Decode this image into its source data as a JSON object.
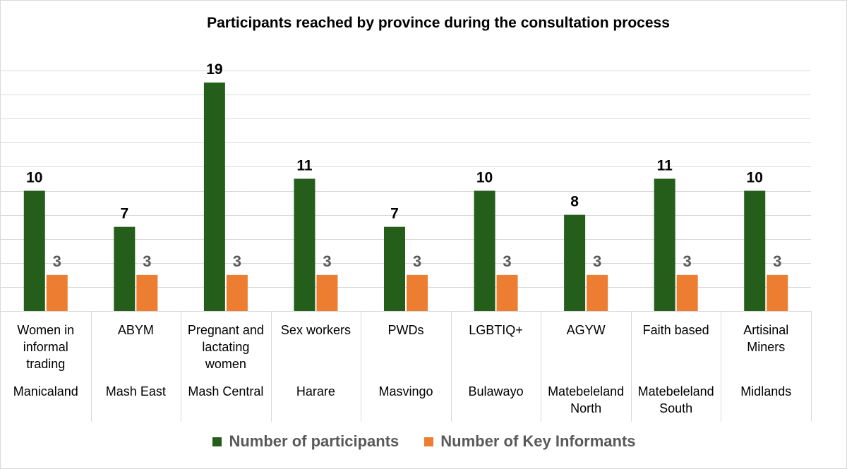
{
  "chart_data": {
    "type": "bar",
    "title": "Participants reached by province during the consultation process",
    "categories": [
      {
        "group": [
          "Women in",
          "informal",
          "trading"
        ],
        "province": [
          "Manicaland"
        ]
      },
      {
        "group": [
          "ABYM"
        ],
        "province": [
          "Mash East"
        ]
      },
      {
        "group": [
          "Pregnant and",
          "lactating",
          "women"
        ],
        "province": [
          "Mash Central"
        ]
      },
      {
        "group": [
          "Sex workers"
        ],
        "province": [
          "Harare"
        ]
      },
      {
        "group": [
          "PWDs"
        ],
        "province": [
          "Masvingo"
        ]
      },
      {
        "group": [
          "LGBTIQ+"
        ],
        "province": [
          "Bulawayo"
        ]
      },
      {
        "group": [
          "AGYW"
        ],
        "province": [
          "Matebeleland",
          "North"
        ]
      },
      {
        "group": [
          "Faith based"
        ],
        "province": [
          "Matebeleland",
          "South"
        ]
      },
      {
        "group": [
          "Artisinal",
          "Miners"
        ],
        "province": [
          "Midlands"
        ]
      }
    ],
    "series": [
      {
        "name": "Number of participants",
        "color": "#255E1B",
        "label_color": "#000000",
        "values": [
          10,
          7,
          19,
          11,
          7,
          10,
          8,
          11,
          10
        ]
      },
      {
        "name": "Number of Key Informants",
        "color": "#ED7D31",
        "label_color": "#595959",
        "values": [
          3,
          3,
          3,
          3,
          3,
          3,
          3,
          3,
          3
        ]
      }
    ],
    "ylim": [
      0,
      20
    ],
    "y_gridline_step": 2,
    "grid": true,
    "legend_position": "bottom",
    "xlabel": "",
    "ylabel": ""
  }
}
